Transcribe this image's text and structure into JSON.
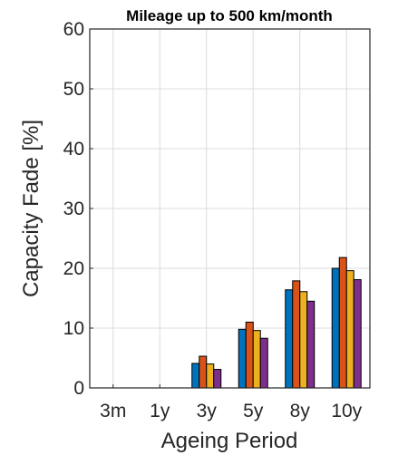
{
  "chart_data": {
    "type": "bar",
    "title": "Mileage up to 500 km/month",
    "xlabel": "Ageing Period",
    "ylabel": "Capacity Fade [%]",
    "categories": [
      "3m",
      "1y",
      "3y",
      "5y",
      "8y",
      "10y"
    ],
    "ylim": [
      0,
      60
    ],
    "yticks": [
      0,
      10,
      20,
      30,
      40,
      50,
      60
    ],
    "grid": true,
    "series": [
      {
        "color": "#0072BD",
        "values": [
          0,
          0,
          4.1,
          9.8,
          16.4,
          20.0
        ]
      },
      {
        "color": "#D95319",
        "values": [
          0,
          0,
          5.3,
          11.0,
          17.9,
          21.8
        ]
      },
      {
        "color": "#EDB120",
        "values": [
          0,
          0,
          4.0,
          9.6,
          16.1,
          19.6
        ]
      },
      {
        "color": "#7E2F8E",
        "values": [
          0,
          0,
          3.1,
          8.3,
          14.5,
          18.1
        ]
      }
    ]
  }
}
